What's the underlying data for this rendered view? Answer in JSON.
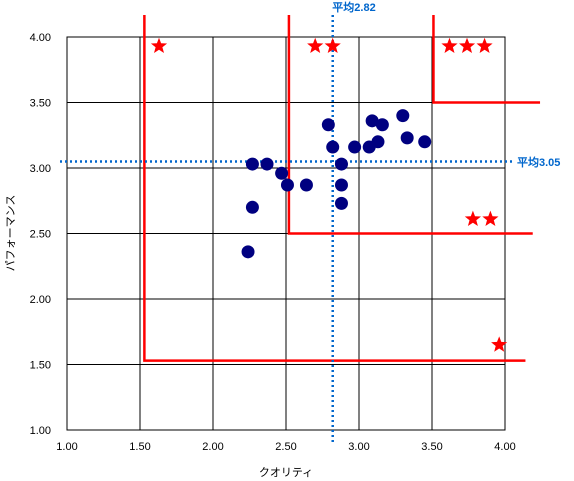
{
  "chart_data": {
    "type": "scatter",
    "xlabel": "クオリティ",
    "ylabel": "パフォーマンス",
    "xlim": [
      1.0,
      4.0
    ],
    "ylim": [
      1.0,
      4.0
    ],
    "x_ticks": [
      "1.00",
      "1.50",
      "2.00",
      "2.50",
      "3.00",
      "3.50",
      "4.00"
    ],
    "y_ticks": [
      "1.00",
      "1.50",
      "2.00",
      "2.50",
      "3.00",
      "3.50",
      "4.00"
    ],
    "grid": true,
    "point_color": "#000080",
    "points": [
      {
        "x": 2.24,
        "y": 2.36
      },
      {
        "x": 2.27,
        "y": 2.7
      },
      {
        "x": 2.27,
        "y": 3.03
      },
      {
        "x": 2.37,
        "y": 3.03
      },
      {
        "x": 2.47,
        "y": 2.96
      },
      {
        "x": 2.51,
        "y": 2.87
      },
      {
        "x": 2.64,
        "y": 2.87
      },
      {
        "x": 2.79,
        "y": 3.33
      },
      {
        "x": 2.82,
        "y": 3.16
      },
      {
        "x": 2.88,
        "y": 3.03
      },
      {
        "x": 2.88,
        "y": 2.87
      },
      {
        "x": 2.88,
        "y": 2.73
      },
      {
        "x": 2.97,
        "y": 3.16
      },
      {
        "x": 3.07,
        "y": 3.16
      },
      {
        "x": 3.09,
        "y": 3.36
      },
      {
        "x": 3.13,
        "y": 3.2
      },
      {
        "x": 3.16,
        "y": 3.33
      },
      {
        "x": 3.3,
        "y": 3.4
      },
      {
        "x": 3.33,
        "y": 3.23
      },
      {
        "x": 3.45,
        "y": 3.2
      }
    ],
    "reference_lines": {
      "color": "#0066cc",
      "x_mean": {
        "value": 2.82,
        "label": "平均2.82"
      },
      "y_mean": {
        "value": 3.05,
        "label": "平均3.05"
      }
    },
    "zone_boundaries": {
      "color": "#ff0000",
      "lines": [
        {
          "x": 1.53,
          "y": 1.53
        },
        {
          "x": 2.52,
          "y": 2.5
        },
        {
          "x": 3.51,
          "y": 3.5
        }
      ]
    },
    "star_marks": {
      "color": "#ff0000",
      "groups": [
        {
          "x": [
            1.63
          ],
          "y": 3.93
        },
        {
          "x": [
            2.7,
            2.82
          ],
          "y": 3.93
        },
        {
          "x": [
            3.62,
            3.74,
            3.86
          ],
          "y": 3.93
        },
        {
          "x": [
            3.78,
            3.9
          ],
          "y": 2.61
        },
        {
          "x": [
            3.96
          ],
          "y": 1.65
        }
      ]
    }
  }
}
